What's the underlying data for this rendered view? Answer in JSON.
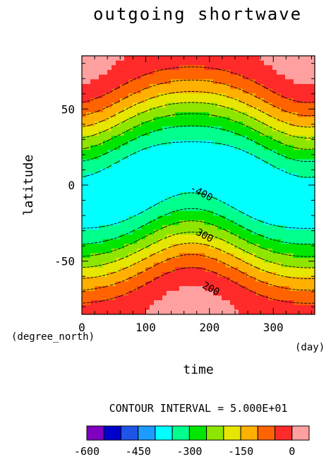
{
  "chart_data": {
    "type": "heatmap",
    "title": "outgoing shortwave",
    "xlabel": "time",
    "ylabel": "latitude",
    "x_unit": "(day)",
    "y_unit": "(degree_north)",
    "xlim": [
      0,
      365
    ],
    "ylim": [
      -85,
      85
    ],
    "x_ticks": [
      "0",
      "100",
      "200",
      "300"
    ],
    "x_tick_values": [
      0,
      100,
      200,
      300
    ],
    "y_ticks": [
      "50",
      "0",
      "-50"
    ],
    "y_tick_values": [
      50,
      0,
      -50
    ],
    "contour_interval_text": "CONTOUR INTERVAL = 5.000E+01",
    "contour_labels": [
      {
        "text": "-400",
        "x": 185,
        "y": -7
      },
      {
        "text": "300",
        "x": 190,
        "y": -35
      },
      {
        "text": "200",
        "x": 200,
        "y": -70
      }
    ],
    "field_model": "-(400*cos(lat)*max(0, cos(lat)*cos(solar_declination) + sin(lat)*sin(solar_declination)))",
    "levels": [
      -600,
      -550,
      -500,
      -450,
      -400,
      -350,
      -300,
      -250,
      -200,
      -150,
      -100,
      -50,
      0
    ],
    "colorbar_labels": [
      "-600",
      "-450",
      "-300",
      "-150",
      "0"
    ],
    "colorbar_label_values": [
      -600,
      -450,
      -300,
      -150,
      0
    ],
    "colors": [
      "#7f00bf",
      "#0000cd",
      "#1f55e6",
      "#1e9bff",
      "#00ffff",
      "#00ff8c",
      "#00e600",
      "#8ee600",
      "#e6e600",
      "#ffb000",
      "#ff6400",
      "#ff2a2a",
      "#ffa0a0"
    ],
    "grid": false
  }
}
